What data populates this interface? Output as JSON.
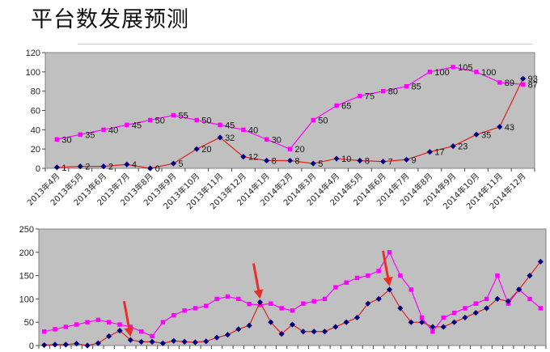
{
  "page": {
    "title": "平台数发展预测"
  },
  "colors": {
    "plot_bg": "#c0c0c0",
    "series_pink": "#ff00ff",
    "series_navy": "#000080",
    "line_red": "#e0201a",
    "arrow": "#e8302a"
  },
  "chart_data": [
    {
      "type": "line",
      "categories": [
        "2013年4月",
        "2013年5月",
        "2013年6月",
        "2013年7月",
        "2013年8月",
        "2013年9月",
        "2013年10月",
        "2013年11月",
        "2013年12月",
        "2014年1月",
        "2014年2月",
        "2014年3月",
        "2014年4月",
        "2014年5月",
        "2014年6月",
        "2014年7月",
        "2014年8月",
        "2014年9月",
        "2014年10月",
        "2014年11月",
        "2014年12月"
      ],
      "series": [
        {
          "color": "#ff00ff",
          "line_color": "#ff00ff",
          "marker": "square",
          "values": [
            30,
            35,
            40,
            45,
            50,
            55,
            50,
            45,
            40,
            30,
            20,
            50,
            65,
            75,
            80,
            85,
            100,
            105,
            100,
            89,
            87
          ],
          "labels": [
            "30",
            "35",
            "40",
            "45",
            "50",
            "55",
            "50",
            "45",
            "40",
            "30",
            "20",
            "50",
            "65",
            "75",
            "80",
            "85",
            "100",
            "105",
            "100",
            "89",
            "87"
          ]
        },
        {
          "color": "#000080",
          "line_color": "#e0201a",
          "marker": "diamond",
          "values": [
            1,
            2,
            2,
            4,
            0,
            5,
            20,
            32,
            12,
            8,
            8,
            5,
            10,
            8,
            7,
            9,
            17,
            23,
            35,
            43,
            93
          ],
          "labels": [
            "1",
            "2",
            "2",
            "4",
            "0",
            "5",
            "20",
            "32",
            "12",
            "8",
            "8",
            "5",
            "10",
            "8",
            "7",
            "9",
            "17",
            "23",
            "35",
            "43",
            "93"
          ]
        }
      ],
      "ylim": [
        0,
        120
      ],
      "yticks": [
        "0",
        "20",
        "40",
        "60",
        "80",
        "100",
        "120"
      ],
      "grid": false
    },
    {
      "type": "line",
      "series": [
        {
          "color": "#ff00ff",
          "line_color": "#ff00ff",
          "marker": "square",
          "values": [
            30,
            35,
            40,
            45,
            50,
            55,
            50,
            45,
            40,
            30,
            20,
            50,
            65,
            75,
            80,
            85,
            100,
            105,
            100,
            89,
            87,
            90,
            80,
            75,
            90,
            95,
            100,
            125,
            135,
            145,
            150,
            160,
            200,
            150,
            120,
            60,
            30,
            60,
            70,
            80,
            90,
            100,
            150,
            90,
            120,
            100,
            80
          ]
        },
        {
          "color": "#000080",
          "line_color": "#e0201a",
          "marker": "diamond",
          "values": [
            1,
            2,
            2,
            4,
            0,
            5,
            20,
            32,
            12,
            8,
            8,
            5,
            10,
            8,
            7,
            9,
            17,
            23,
            35,
            43,
            93,
            50,
            25,
            45,
            30,
            30,
            30,
            40,
            50,
            60,
            90,
            100,
            120,
            80,
            50,
            50,
            40,
            40,
            50,
            60,
            70,
            80,
            100,
            95,
            120,
            150,
            180
          ]
        }
      ],
      "ylim": [
        0,
        250
      ],
      "yticks": [
        "0",
        "50",
        "100",
        "150",
        "200",
        "250"
      ],
      "grid": false,
      "annotations": [
        {
          "type": "arrow",
          "target_series": 1,
          "target_index": 8
        },
        {
          "type": "arrow",
          "target_series": 1,
          "target_index": 20
        },
        {
          "type": "arrow",
          "target_series": 1,
          "target_index": 32
        }
      ]
    }
  ]
}
